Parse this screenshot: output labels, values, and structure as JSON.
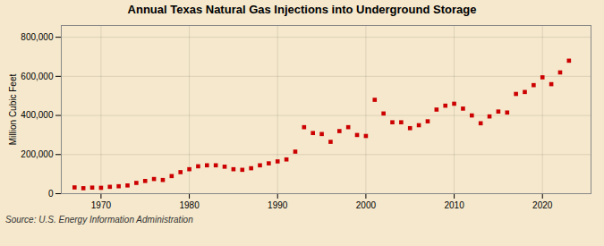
{
  "chart_data": {
    "type": "scatter",
    "title": "Annual Texas Natural Gas Injections into Underground Storage",
    "ylabel": "Million Cubic Feet",
    "source": "Source: U.S. Energy Information Administration",
    "x": [
      1967,
      1968,
      1969,
      1970,
      1971,
      1972,
      1973,
      1974,
      1975,
      1976,
      1977,
      1978,
      1979,
      1980,
      1981,
      1982,
      1983,
      1984,
      1985,
      1986,
      1987,
      1988,
      1989,
      1990,
      1991,
      1992,
      1993,
      1994,
      1995,
      1996,
      1997,
      1998,
      1999,
      2000,
      2001,
      2002,
      2003,
      2004,
      2005,
      2006,
      2007,
      2008,
      2009,
      2010,
      2011,
      2012,
      2013,
      2014,
      2015,
      2016,
      2017,
      2018,
      2019,
      2020,
      2021,
      2022,
      2023
    ],
    "values": [
      32000,
      28000,
      31000,
      30000,
      35000,
      38000,
      42000,
      55000,
      65000,
      75000,
      70000,
      90000,
      110000,
      125000,
      140000,
      145000,
      145000,
      138000,
      125000,
      122000,
      130000,
      145000,
      155000,
      165000,
      175000,
      215000,
      340000,
      310000,
      305000,
      265000,
      320000,
      340000,
      300000,
      295000,
      480000,
      410000,
      365000,
      365000,
      335000,
      350000,
      370000,
      430000,
      450000,
      460000,
      435000,
      400000,
      360000,
      395000,
      420000,
      415000,
      510000,
      520000,
      555000,
      595000,
      560000,
      620000,
      680000
    ],
    "color": "#cc0000",
    "marker": "square",
    "xlim": [
      1965.5,
      2025.5
    ],
    "ylim": [
      0,
      860000
    ],
    "xticks": [
      1970,
      1980,
      1990,
      2000,
      2010,
      2020
    ],
    "yticks": [
      0,
      {
        "value": 200000,
        "label": "200,000"
      },
      {
        "value": 400000,
        "label": "400,000"
      },
      {
        "value": 600000,
        "label": "600,000"
      },
      {
        "value": 800000,
        "label": "800,000"
      }
    ],
    "grid": true
  }
}
